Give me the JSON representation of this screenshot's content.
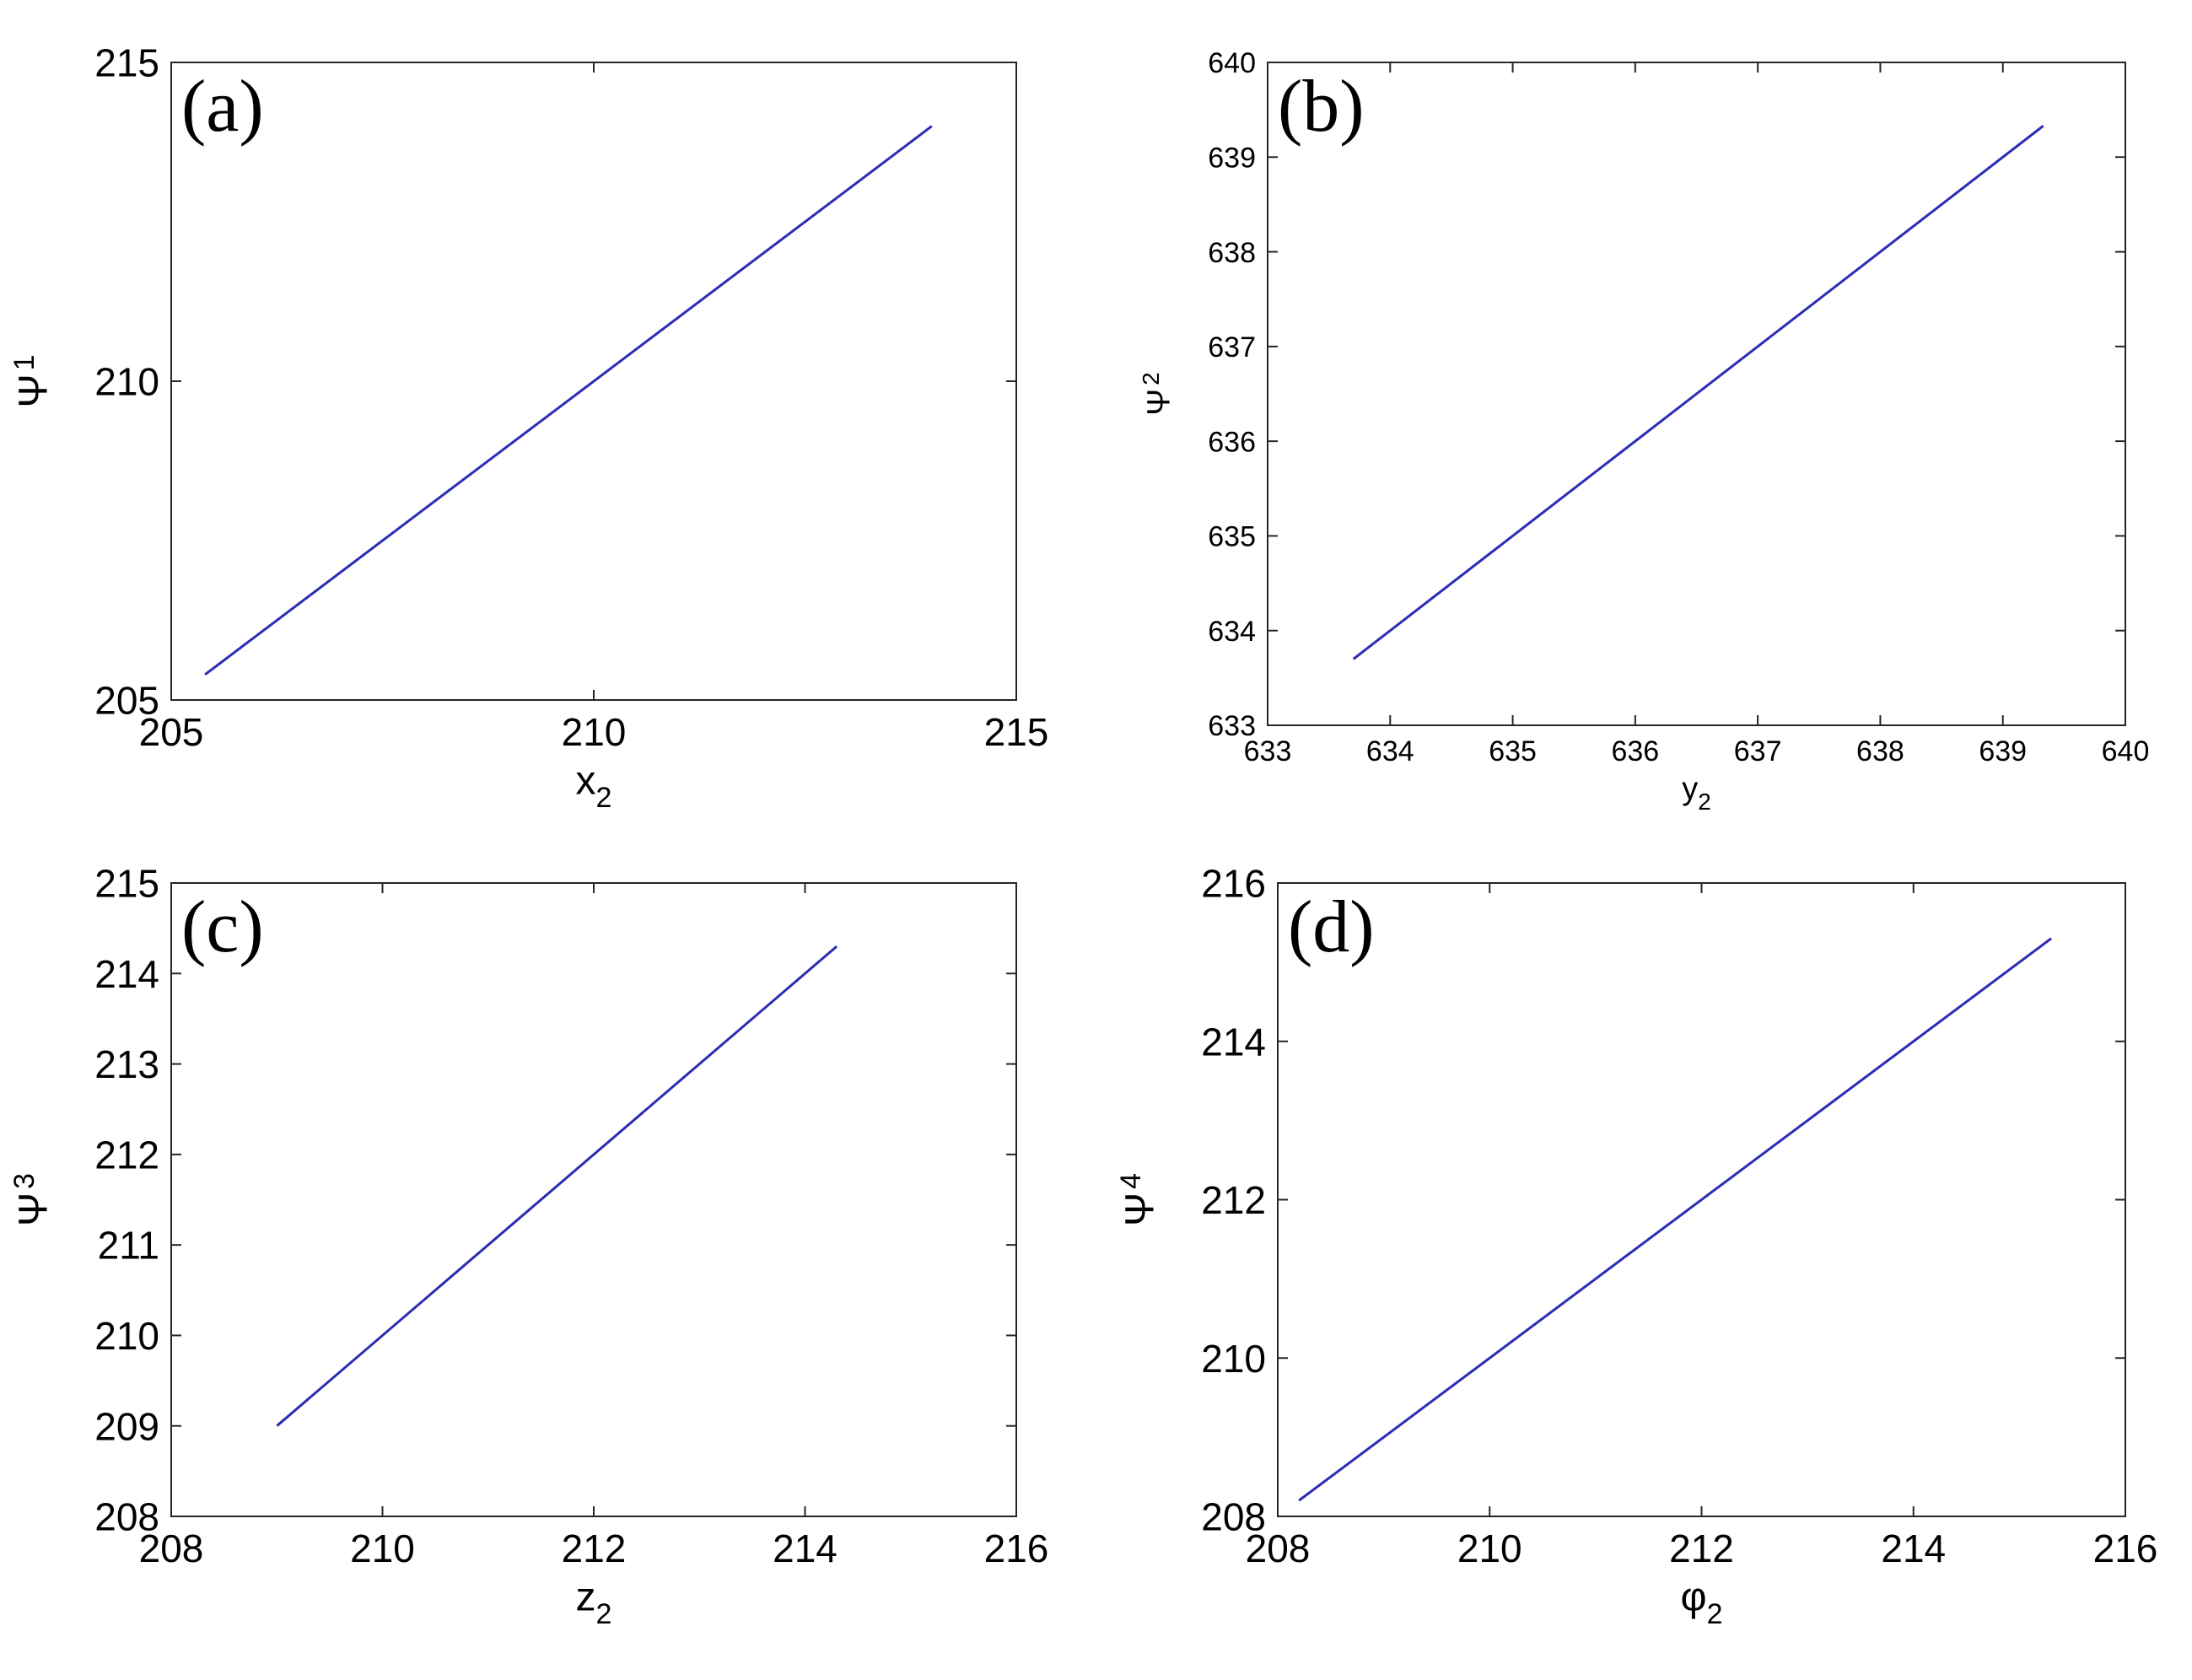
{
  "chart_data": [
    {
      "type": "line",
      "panel_label": "(a)",
      "xlabel": "x",
      "xlabel_sub": "2",
      "ylabel": "Ψ",
      "ylabel_sub": "1",
      "xlim": [
        205,
        215
      ],
      "ylim": [
        205,
        215
      ],
      "xticks": [
        205,
        210,
        215
      ],
      "yticks": [
        205,
        210,
        215
      ],
      "grid": false,
      "color": "#2b2bb5",
      "x": [
        205.4,
        214.0
      ],
      "y": [
        205.4,
        214.0
      ]
    },
    {
      "type": "line",
      "panel_label": "(b)",
      "xlabel": "y",
      "xlabel_sub": "2",
      "ylabel": "Ψ",
      "ylabel_sub": "2",
      "xlim": [
        633,
        640
      ],
      "ylim": [
        633,
        640
      ],
      "xticks": [
        633,
        634,
        635,
        636,
        637,
        638,
        639,
        640
      ],
      "yticks": [
        633,
        634,
        635,
        636,
        637,
        638,
        639,
        640
      ],
      "grid": false,
      "color": "#2b2bb5",
      "x": [
        633.7,
        639.33
      ],
      "y": [
        633.7,
        639.33
      ]
    },
    {
      "type": "line",
      "panel_label": "(c)",
      "xlabel": "z",
      "xlabel_sub": "2",
      "ylabel": "Ψ",
      "ylabel_sub": "3",
      "xlim": [
        208,
        216
      ],
      "ylim": [
        208,
        215
      ],
      "xticks": [
        208,
        210,
        212,
        214,
        216
      ],
      "yticks": [
        208,
        209,
        210,
        211,
        212,
        213,
        214,
        215
      ],
      "grid": false,
      "color": "#2b2bb5",
      "x": [
        209.0,
        214.3
      ],
      "y": [
        209.0,
        214.3
      ]
    },
    {
      "type": "line",
      "panel_label": "(d)",
      "xlabel": "φ",
      "xlabel_sub": "2",
      "ylabel": "Ψ",
      "ylabel_sub": "4",
      "xlim": [
        208,
        216
      ],
      "ylim": [
        208,
        216
      ],
      "xticks": [
        208,
        210,
        212,
        214,
        216
      ],
      "yticks": [
        208,
        210,
        212,
        214,
        216
      ],
      "grid": false,
      "color": "#2b2bb5",
      "x": [
        208.2,
        215.3
      ],
      "y": [
        208.2,
        215.3
      ]
    }
  ]
}
